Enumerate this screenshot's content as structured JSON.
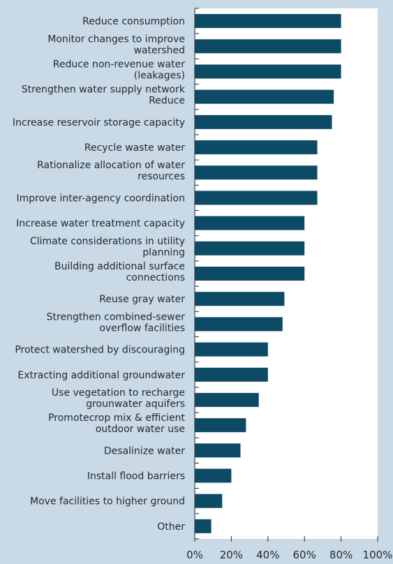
{
  "chart_data": {
    "type": "bar",
    "orientation": "horizontal",
    "categories": [
      [
        "Reduce consumption"
      ],
      [
        "Monitor changes to improve",
        "watershed"
      ],
      [
        "Reduce non-revenue water",
        "(leakages)"
      ],
      [
        "Strengthen water supply network",
        "Reduce"
      ],
      [
        "Increase reservoir storage capacity"
      ],
      [
        "Recycle waste water"
      ],
      [
        "Rationalize allocation of water",
        "resources"
      ],
      [
        "Improve inter-agency coordination"
      ],
      [
        "Increase water treatment capacity"
      ],
      [
        "Climate considerations in utility",
        "planning"
      ],
      [
        "Building additional surface",
        "connections"
      ],
      [
        "Reuse gray water"
      ],
      [
        "Strengthen combined-sewer",
        "overflow facilities"
      ],
      [
        "Protect watershed by discouraging"
      ],
      [
        "Extracting additional groundwater"
      ],
      [
        "Use vegetation to recharge",
        "grounwater aquifers"
      ],
      [
        "Promotecrop mix & efficient",
        "outdoor water use"
      ],
      [
        "Desalinize water"
      ],
      [
        "Install flood barriers"
      ],
      [
        "Move facilities to higher ground"
      ],
      [
        "Other"
      ]
    ],
    "values": [
      80,
      80,
      80,
      76,
      75,
      67,
      67,
      67,
      60,
      60,
      60,
      49,
      48,
      40,
      40,
      35,
      28,
      25,
      20,
      15,
      9
    ],
    "xlim": [
      0,
      100
    ],
    "xticks": [
      "0%",
      "20%",
      "40%",
      "60%",
      "80%",
      "100%"
    ],
    "bar_color": "#0d4a66",
    "grid": false
  }
}
